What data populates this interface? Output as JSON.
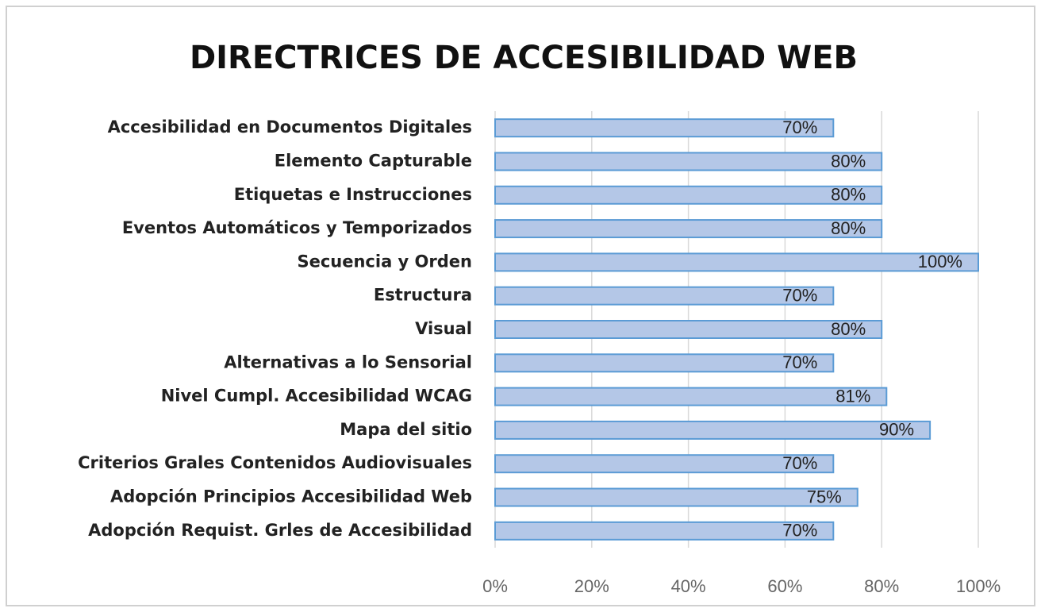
{
  "chart_data": {
    "type": "barh",
    "title": "DIRECTRICES DE ACCESIBILIDAD WEB",
    "categories": [
      "Accesibilidad en Documentos Digitales",
      "Elemento Capturable",
      "Etiquetas e Instrucciones",
      "Eventos Automáticos y Temporizados",
      "Secuencia y Orden",
      "Estructura",
      "Visual",
      "Alternativas a lo Sensorial",
      "Nivel Cumpl. Accesibilidad WCAG",
      "Mapa del sitio",
      "Criterios Grales Contenidos Audiovisuales",
      "Adopción Principios Accesibilidad Web",
      "Adopción Requist. Grles de Accesibilidad"
    ],
    "values": [
      70,
      80,
      80,
      80,
      100,
      70,
      80,
      70,
      81,
      90,
      70,
      75,
      70
    ],
    "value_labels": [
      "70%",
      "80%",
      "80%",
      "80%",
      "100%",
      "70%",
      "80%",
      "70%",
      "81%",
      "90%",
      "70%",
      "75%",
      "70%"
    ],
    "color": "#b4c7e7",
    "edge_color": "#5b9bd5",
    "xlim": [
      0,
      100
    ],
    "xticks": [
      {
        "value": 0,
        "label": "0%"
      },
      {
        "value": 20,
        "label": "20%"
      },
      {
        "value": 40,
        "label": "40%"
      },
      {
        "value": 60,
        "label": "60%"
      },
      {
        "value": 80,
        "label": "80%"
      },
      {
        "value": 100,
        "label": "100%"
      }
    ],
    "grid": true
  }
}
